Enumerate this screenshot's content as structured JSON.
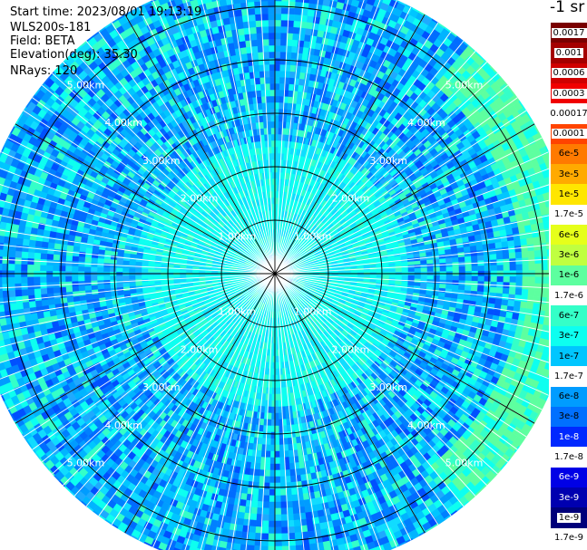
{
  "info": {
    "start_time": "Start time: 2023/08/01 19:13:19",
    "device": "WLS200s-181",
    "field": "Field: BETA",
    "elevation": "Elevation(deg): 35.30",
    "nrays": "NRays: 120"
  },
  "colorbar": {
    "unit": "-1 sr",
    "bands": [
      {
        "label": "0.0017",
        "color": "#7a0000",
        "text": "#ffffff",
        "box": true
      },
      {
        "label": "0.001",
        "color": "#a40000",
        "text": "#ffffff",
        "box": true
      },
      {
        "label": "0.0006",
        "color": "#cf0000",
        "text": "#ffffff",
        "box": true
      },
      {
        "label": "0.0003",
        "color": "#f00000",
        "text": "#ffffff",
        "box": true
      },
      {
        "label": "0.0001",
        "color": "#ff4400",
        "text": "#000000",
        "box": true
      },
      {
        "label": "6e-5",
        "color": "#ff7a00",
        "text": "#000000",
        "box": false
      },
      {
        "label": "3e-5",
        "color": "#ffaa00",
        "text": "#000000",
        "box": false
      },
      {
        "label": "1e-5",
        "color": "#ffe600",
        "text": "#000000",
        "box": false
      },
      {
        "label": "6e-6",
        "color": "#e6ff1a",
        "text": "#000000",
        "box": false
      },
      {
        "label": "3e-6",
        "color": "#c0ff40",
        "text": "#000000",
        "box": false
      },
      {
        "label": "1e-6",
        "color": "#5dff9f",
        "text": "#000000",
        "box": false
      },
      {
        "label": "6e-7",
        "color": "#34ffc8",
        "text": "#000000",
        "box": false
      },
      {
        "label": "3e-7",
        "color": "#0dfff0",
        "text": "#000000",
        "box": false
      },
      {
        "label": "1e-7",
        "color": "#00c6ff",
        "text": "#000000",
        "box": false
      },
      {
        "label": "6e-8",
        "color": "#009cff",
        "text": "#000000",
        "box": false
      },
      {
        "label": "3e-8",
        "color": "#0070ff",
        "text": "#000000",
        "box": false
      },
      {
        "label": "1e-8",
        "color": "#0028ff",
        "text": "#ffffff",
        "box": false
      },
      {
        "label": "6e-9",
        "color": "#0000e6",
        "text": "#ffffff",
        "box": false
      },
      {
        "label": "3e-9",
        "color": "#0000b0",
        "text": "#ffffff",
        "box": false
      },
      {
        "label": "1e-9",
        "color": "#00007a",
        "text": "#ffffff",
        "box": true
      }
    ],
    "ticks": [
      "0.00017",
      "1.7e-5",
      "1.7e-6",
      "1.7e-7",
      "1.7e-8",
      "1.7e-9"
    ]
  },
  "chart_data": {
    "type": "heatmap",
    "projection": "polar",
    "field": "BETA",
    "n_rays": 120,
    "range_rings_km": [
      1,
      2,
      3,
      4,
      5
    ],
    "ring_labels": [
      "1.00km",
      "2.00km",
      "3.00km",
      "4.00km",
      "5.00km"
    ],
    "max_range_km": 5.6,
    "azimuth_spokes_deg": [
      0,
      30,
      60,
      90,
      120,
      150,
      180,
      210,
      240,
      270,
      300,
      330
    ],
    "color_scale": "log",
    "value_range": [
      1e-09,
      0.0017
    ],
    "typical_value_near_center": 3e-07,
    "typical_value_far_range": 1e-07,
    "enhanced_sector_deg": [
      40,
      140
    ],
    "enhanced_sector_max_value": 3e-06
  }
}
